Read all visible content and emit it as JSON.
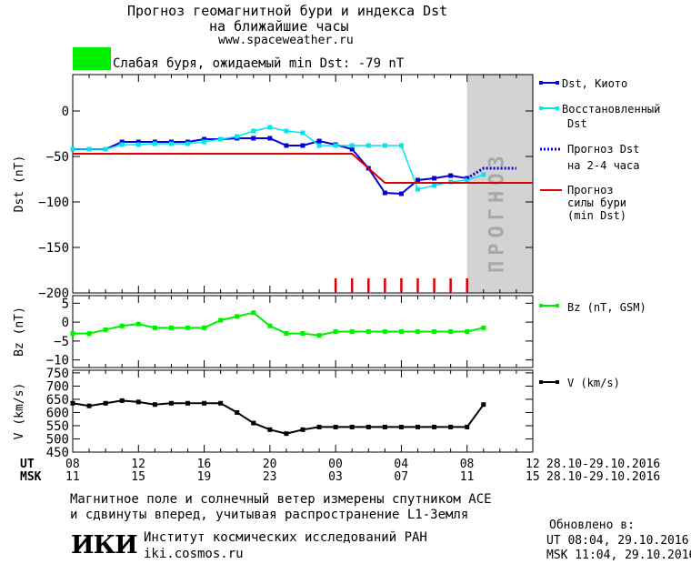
{
  "header": {
    "title_line1": "Прогноз геомагнитной бури и индекса Dst",
    "title_line2": "на ближайшие часы",
    "site": "www.spaceweather.ru",
    "storm_status": "Слабая буря, ожидаемый min Dst: -79 nT",
    "status_color": "#00ee00"
  },
  "forecast_band_label": "ПРОГНОЗ",
  "legend": {
    "dst_kyoto": "Dst, Киото",
    "restored_line1": "Восстановленный",
    "restored_line2": "Dst",
    "forecast_line1": "Прогноз Dst",
    "forecast_line2": "на 2-4 часа",
    "storm_line1": "Прогноз",
    "storm_line2": "силы бури",
    "storm_line3": "(min Dst)",
    "bz": "Bz (nT, GSM)",
    "v": "V (km/s)"
  },
  "time_axis": {
    "ut_label": "UT",
    "msk_label": "MSK",
    "ut_ticks": [
      "08",
      "12",
      "16",
      "20",
      "00",
      "04",
      "08",
      "12"
    ],
    "msk_ticks": [
      "11",
      "15",
      "19",
      "23",
      "03",
      "07",
      "11",
      "15"
    ],
    "date_range_ut": "28.10-29.10.2016",
    "date_range_msk": "28.10-29.10.2016"
  },
  "footer": {
    "note_line1": "Магнитное поле и солнечный ветер измерены спутником ACE",
    "note_line2": "и сдвинуты вперед, учитывая распространение L1-Земля",
    "logo_text": "ИКИ",
    "institute": "Институт космических исследований РАН",
    "institute_site": "iki.cosmos.ru",
    "updated_label": "Обновлено в:",
    "updated_ut": "UT  08:04, 29.10.2016",
    "updated_msk": "MSK 11:04, 29.10.2016"
  },
  "colors": {
    "dst_kyoto": "#0000dd",
    "restored": "#00e5ee",
    "forecast": "#0000cc",
    "storm": "#dd0000",
    "bz": "#00ee00",
    "v": "#000000",
    "forecast_band": "#d3d3d3"
  },
  "chart_data": [
    {
      "type": "line",
      "ylabel": "Dst (nT)",
      "ylim": [
        -200,
        40
      ],
      "yticks": [
        0,
        -50,
        -100,
        -150,
        -200
      ],
      "xlim": [
        8,
        36
      ],
      "forecast_band_start": 32,
      "series": [
        {
          "name": "Dst, Киото",
          "x": [
            8,
            9,
            10,
            11,
            12,
            13,
            14,
            15,
            16,
            17,
            18,
            19,
            20,
            21,
            22,
            23,
            24,
            25,
            26,
            27,
            28,
            29,
            30,
            31,
            32
          ],
          "values": [
            -42,
            -42,
            -42,
            -34,
            -34,
            -34,
            -34,
            -34,
            -31,
            -31,
            -30,
            -30,
            -30,
            -38,
            -38,
            -33,
            -37,
            -42,
            -63,
            -90,
            -91,
            -76,
            -74,
            -71,
            -74
          ]
        },
        {
          "name": "Восстановленный Dst",
          "x": [
            8,
            9,
            10,
            11,
            12,
            13,
            14,
            15,
            16,
            17,
            18,
            19,
            20,
            21,
            22,
            23,
            24,
            25,
            26,
            27,
            28,
            29,
            30,
            31,
            32,
            33
          ],
          "values": [
            -42,
            -42,
            -42,
            -37,
            -37,
            -36,
            -36,
            -36,
            -34,
            -31,
            -28,
            -22,
            -18,
            -22,
            -24,
            -38,
            -38,
            -38,
            -38,
            -38,
            -38,
            -86,
            -82,
            -78,
            -76,
            -70
          ]
        },
        {
          "name": "Прогноз Dst на 2-4 часа",
          "x": [
            32,
            33,
            34,
            35
          ],
          "values": [
            -74,
            -63,
            -63,
            -63
          ]
        },
        {
          "name": "Прогноз силы бури (min Dst)",
          "x": [
            8,
            25,
            27,
            36
          ],
          "values": [
            -47,
            -47,
            -79,
            -79
          ]
        }
      ],
      "tick_markers_x": [
        24,
        25,
        26,
        27,
        28,
        29,
        30,
        31,
        32
      ]
    },
    {
      "type": "line",
      "ylabel": "Bz (nT)",
      "ylim": [
        -12,
        7
      ],
      "yticks": [
        5,
        0,
        -5,
        -10
      ],
      "xlim": [
        8,
        36
      ],
      "series": [
        {
          "name": "Bz (nT, GSM)",
          "x": [
            8,
            9,
            10,
            11,
            12,
            13,
            14,
            15,
            16,
            17,
            18,
            19,
            20,
            21,
            22,
            23,
            24,
            25,
            26,
            27,
            28,
            29,
            30,
            31,
            32,
            33
          ],
          "values": [
            -3,
            -3,
            -2,
            -1,
            -0.5,
            -1.5,
            -1.5,
            -1.5,
            -1.5,
            0.5,
            1.5,
            2.5,
            -1,
            -3,
            -3,
            -3.5,
            -2.5,
            -2.5,
            -2.5,
            -2.5,
            -2.5,
            -2.5,
            -2.5,
            -2.5,
            -2.5,
            -1.5
          ]
        }
      ]
    },
    {
      "type": "line",
      "ylabel": "V (km/s)",
      "ylim": [
        450,
        760
      ],
      "yticks": [
        750,
        700,
        650,
        600,
        550,
        500,
        450
      ],
      "xlim": [
        8,
        36
      ],
      "series": [
        {
          "name": "V (km/s)",
          "x": [
            8,
            9,
            10,
            11,
            12,
            13,
            14,
            15,
            16,
            17,
            18,
            19,
            20,
            21,
            22,
            23,
            24,
            25,
            26,
            27,
            28,
            29,
            30,
            31,
            32,
            33
          ],
          "values": [
            635,
            625,
            635,
            645,
            640,
            630,
            635,
            635,
            635,
            635,
            600,
            560,
            535,
            520,
            535,
            545,
            545,
            545,
            545,
            545,
            545,
            545,
            545,
            545,
            545,
            630
          ]
        }
      ]
    }
  ]
}
